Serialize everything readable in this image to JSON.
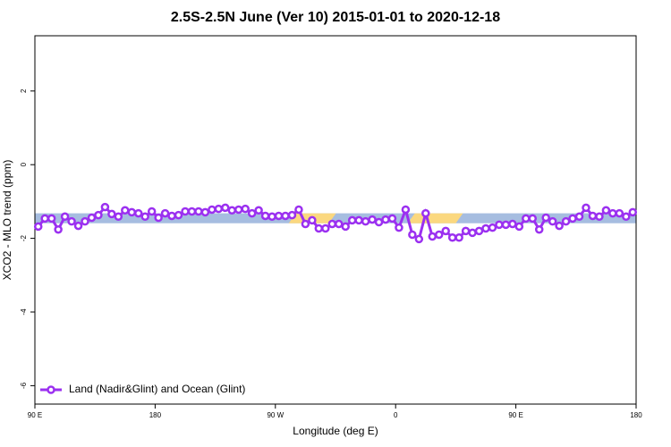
{
  "chart_data": {
    "type": "line",
    "title": "2.5S-2.5N June (Ver 10)   2015-01-01 to 2020-12-18",
    "x_label": "Longitude (deg E)",
    "y_label": "XCO2 - MLO trend (ppm)",
    "xlim": [
      90,
      540
    ],
    "ylim": [
      -6.5,
      3.5
    ],
    "xticks": [
      {
        "value": 90,
        "label": "90 E"
      },
      {
        "value": 180,
        "label": "180"
      },
      {
        "value": 270,
        "label": "90 W"
      },
      {
        "value": 360,
        "label": "0"
      },
      {
        "value": 450,
        "label": "90 E"
      },
      {
        "value": 540,
        "label": "180"
      }
    ],
    "yticks": [
      2,
      0,
      -2,
      -4,
      -6
    ],
    "band": {
      "ylim": [
        -1.59,
        -1.32
      ],
      "color": "#a6bde0",
      "highlight_color": "#fbd87f",
      "highlights": [
        [
          280,
          310
        ],
        [
          369,
          405
        ]
      ]
    },
    "legend": "bottom-left",
    "x": [
      92.5,
      97.5,
      102.5,
      107.5,
      112.5,
      117.5,
      122.5,
      127.5,
      132.5,
      137.5,
      142.5,
      147.5,
      152.5,
      157.5,
      162.5,
      167.5,
      172.5,
      177.5,
      182.5,
      187.5,
      192.5,
      197.5,
      202.5,
      207.5,
      212.5,
      217.5,
      222.5,
      227.5,
      232.5,
      237.5,
      242.5,
      247.5,
      252.5,
      257.5,
      262.5,
      267.5,
      272.5,
      277.5,
      282.5,
      287.5,
      292.5,
      297.5,
      302.5,
      307.5,
      312.5,
      317.5,
      322.5,
      327.5,
      332.5,
      337.5,
      342.5,
      347.5,
      352.5,
      357.5,
      362.5,
      367.5,
      372.5,
      377.5,
      382.5,
      387.5,
      392.5,
      397.5,
      402.5,
      407.5,
      412.5,
      417.5,
      422.5,
      427.5,
      432.5,
      437.5,
      442.5,
      447.5,
      452.5,
      457.5,
      462.5,
      467.5,
      472.5,
      477.5,
      482.5,
      487.5,
      492.5,
      497.5,
      502.5,
      507.5,
      512.5,
      517.5,
      522.5,
      527.5,
      532.5,
      537.5
    ],
    "series": [
      {
        "name": "Land (Nadir&Glint) and Ocean (Glint)",
        "color": "#9b30f0",
        "values": [
          -1.68,
          -1.46,
          -1.46,
          -1.76,
          -1.41,
          -1.54,
          -1.66,
          -1.54,
          -1.44,
          -1.37,
          -1.15,
          -1.34,
          -1.41,
          -1.24,
          -1.29,
          -1.32,
          -1.41,
          -1.27,
          -1.44,
          -1.32,
          -1.39,
          -1.37,
          -1.27,
          -1.27,
          -1.27,
          -1.29,
          -1.22,
          -1.2,
          -1.17,
          -1.24,
          -1.22,
          -1.2,
          -1.32,
          -1.24,
          -1.39,
          -1.41,
          -1.39,
          -1.39,
          -1.37,
          -1.22,
          -1.61,
          -1.51,
          -1.73,
          -1.73,
          -1.61,
          -1.61,
          -1.68,
          -1.51,
          -1.51,
          -1.54,
          -1.49,
          -1.56,
          -1.49,
          -1.46,
          -1.71,
          -1.22,
          -1.9,
          -2.02,
          -1.32,
          -1.95,
          -1.9,
          -1.8,
          -1.98,
          -1.98,
          -1.8,
          -1.85,
          -1.8,
          -1.73,
          -1.71,
          -1.63,
          -1.63,
          -1.61,
          -1.68,
          -1.46,
          -1.46,
          -1.76,
          -1.44,
          -1.54,
          -1.66,
          -1.54,
          -1.46,
          -1.41,
          -1.17,
          -1.39,
          -1.41,
          -1.24,
          -1.32,
          -1.32,
          -1.41,
          -1.29
        ]
      }
    ]
  }
}
